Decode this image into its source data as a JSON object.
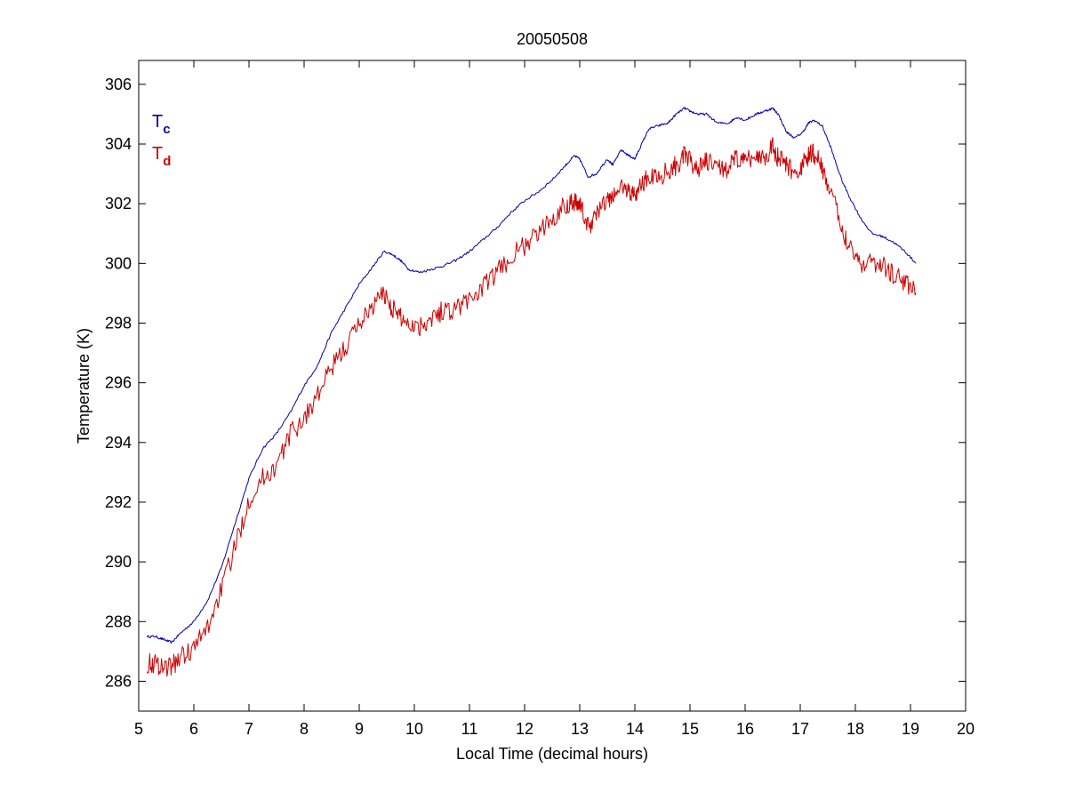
{
  "chart_data": {
    "type": "line",
    "title": "20050508",
    "xlabel": "Local Time (decimal hours)",
    "ylabel": "Temperature (K)",
    "xlim": [
      5,
      20
    ],
    "ylim": [
      285,
      306.8
    ],
    "xticks": [
      5,
      6,
      7,
      8,
      9,
      10,
      11,
      12,
      13,
      14,
      15,
      16,
      17,
      18,
      19,
      20
    ],
    "yticks": [
      286,
      288,
      290,
      292,
      294,
      296,
      298,
      300,
      302,
      304,
      306
    ],
    "grid": false,
    "legend_position": "top-left",
    "series": [
      {
        "name": "T",
        "subscript": "c",
        "color": "#0000aa",
        "noise": 0,
        "x": [
          5.15,
          5.3,
          5.45,
          5.6,
          5.75,
          6.0,
          6.25,
          6.5,
          6.75,
          7.0,
          7.25,
          7.5,
          7.75,
          8.0,
          8.25,
          8.5,
          8.75,
          9.0,
          9.25,
          9.45,
          9.6,
          9.75,
          9.9,
          10.1,
          10.3,
          10.5,
          10.75,
          11.0,
          11.25,
          11.5,
          11.75,
          12.0,
          12.25,
          12.5,
          12.75,
          12.9,
          13.0,
          13.15,
          13.3,
          13.5,
          13.6,
          13.75,
          13.9,
          14.0,
          14.1,
          14.25,
          14.4,
          14.6,
          14.75,
          14.9,
          15.0,
          15.15,
          15.3,
          15.5,
          15.7,
          15.85,
          16.0,
          16.2,
          16.35,
          16.5,
          16.6,
          16.75,
          16.9,
          17.05,
          17.15,
          17.25,
          17.4,
          17.55,
          17.75,
          17.9,
          18.1,
          18.3,
          18.5,
          18.7,
          18.9,
          19.1
        ],
        "y": [
          287.5,
          287.5,
          287.4,
          287.3,
          287.6,
          288.0,
          288.7,
          289.8,
          291.3,
          292.8,
          293.8,
          294.3,
          295.0,
          295.9,
          296.6,
          297.7,
          298.5,
          299.3,
          299.9,
          300.4,
          300.3,
          300.1,
          299.8,
          299.7,
          299.8,
          299.9,
          300.1,
          300.4,
          300.8,
          301.2,
          301.7,
          302.1,
          302.4,
          302.8,
          303.3,
          303.6,
          303.5,
          302.9,
          303.0,
          303.5,
          303.3,
          303.8,
          303.6,
          303.5,
          303.9,
          304.5,
          304.6,
          304.7,
          305.0,
          305.2,
          305.1,
          305.0,
          305.0,
          304.7,
          304.7,
          304.9,
          304.8,
          305.0,
          305.1,
          305.2,
          305.0,
          304.4,
          304.2,
          304.4,
          304.7,
          304.8,
          304.6,
          303.9,
          302.8,
          302.2,
          301.5,
          301.0,
          300.9,
          300.7,
          300.4,
          300.0
        ]
      },
      {
        "name": "T",
        "subscript": "d",
        "color": "#cc0000",
        "noise": 0.35,
        "x": [
          5.15,
          5.3,
          5.45,
          5.6,
          5.75,
          6.0,
          6.25,
          6.5,
          6.75,
          7.0,
          7.25,
          7.5,
          7.75,
          8.0,
          8.25,
          8.5,
          8.75,
          9.0,
          9.25,
          9.45,
          9.6,
          9.75,
          9.9,
          10.1,
          10.3,
          10.5,
          10.75,
          11.0,
          11.25,
          11.5,
          11.75,
          12.0,
          12.25,
          12.5,
          12.75,
          12.9,
          13.0,
          13.15,
          13.3,
          13.5,
          13.6,
          13.75,
          13.9,
          14.0,
          14.1,
          14.25,
          14.4,
          14.6,
          14.75,
          14.9,
          15.0,
          15.15,
          15.3,
          15.5,
          15.7,
          15.85,
          16.0,
          16.2,
          16.35,
          16.5,
          16.6,
          16.75,
          16.9,
          17.05,
          17.15,
          17.25,
          17.4,
          17.55,
          17.75,
          17.9,
          18.1,
          18.3,
          18.5,
          18.7,
          18.9,
          19.1
        ],
        "y": [
          286.6,
          286.6,
          286.5,
          286.5,
          286.8,
          287.1,
          287.8,
          289.1,
          290.5,
          292.1,
          292.8,
          293.2,
          294.3,
          294.8,
          295.6,
          296.5,
          297.2,
          298.0,
          298.6,
          299.0,
          298.5,
          298.2,
          298.0,
          297.9,
          298.2,
          298.4,
          298.5,
          298.8,
          299.2,
          299.7,
          300.2,
          300.6,
          301.0,
          301.5,
          302.0,
          302.1,
          302.0,
          301.2,
          301.7,
          302.1,
          302.2,
          302.6,
          302.4,
          302.3,
          302.6,
          302.9,
          302.9,
          303.1,
          303.3,
          303.6,
          303.4,
          303.2,
          303.4,
          303.2,
          303.2,
          303.5,
          303.4,
          303.6,
          303.6,
          303.9,
          303.5,
          303.3,
          303.0,
          303.3,
          303.6,
          303.7,
          303.2,
          302.4,
          301.2,
          300.6,
          300.0,
          300.1,
          299.9,
          299.6,
          299.4,
          299.0
        ]
      }
    ]
  }
}
